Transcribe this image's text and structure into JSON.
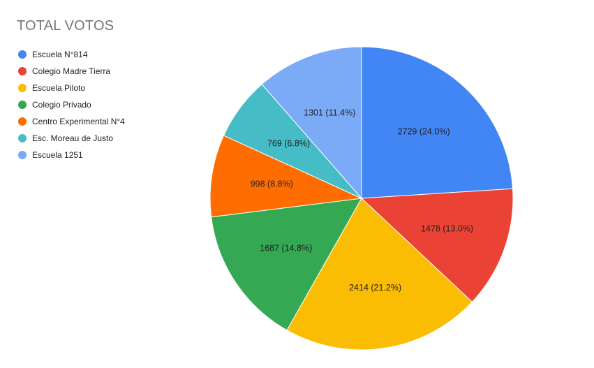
{
  "chart_data": {
    "type": "pie",
    "title": "TOTAL VOTOS",
    "legend_position": "left",
    "slices": [
      {
        "name": "Escuela N°814",
        "value": 2729,
        "label": "2729 (24.0%)",
        "color": "#4285f4"
      },
      {
        "name": "Colegio Madre Tierra",
        "value": 1478,
        "label": "1478 (13.0%)",
        "color": "#ea4335"
      },
      {
        "name": "Escuela Piloto",
        "value": 2414,
        "label": "2414 (21.2%)",
        "color": "#fbbc04"
      },
      {
        "name": "Colegio Privado",
        "value": 1687,
        "label": "1687 (14.8%)",
        "color": "#34a853"
      },
      {
        "name": "Centro Experimental N°4",
        "value": 998,
        "label": "998 (8.8%)",
        "color": "#ff6d01"
      },
      {
        "name": "Esc. Moreau de Justo",
        "value": 769,
        "label": "769 (6.8%)",
        "color": "#46bdc6"
      },
      {
        "name": "Escuela 1251",
        "value": 1301,
        "label": "1301 (11.4%)",
        "color": "#7baaf7"
      }
    ]
  }
}
